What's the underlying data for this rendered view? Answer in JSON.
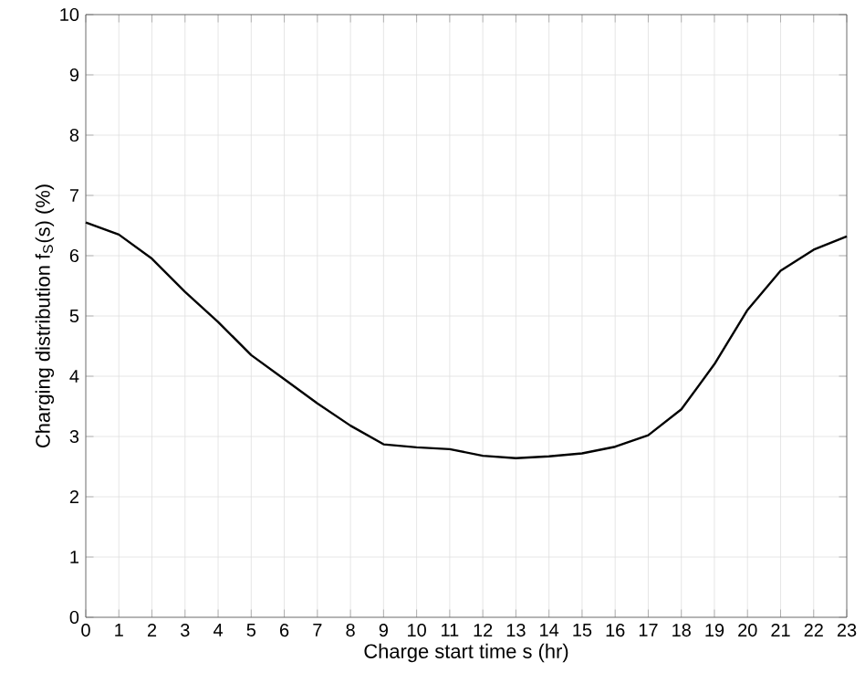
{
  "chart_data": {
    "type": "line",
    "xlabel": "Charge start time s (hr)",
    "ylabel": "Charging distribution f$_{S}$(s) (%)",
    "x": [
      0,
      1,
      2,
      3,
      4,
      5,
      6,
      7,
      8,
      9,
      10,
      11,
      12,
      13,
      14,
      15,
      16,
      17,
      18,
      19,
      20,
      21,
      22,
      23
    ],
    "series": [
      {
        "color": "#000000",
        "values": [
          6.55,
          6.35,
          5.95,
          5.4,
          4.9,
          4.35,
          3.95,
          3.55,
          3.18,
          2.87,
          2.82,
          2.79,
          2.68,
          2.64,
          2.67,
          2.72,
          2.83,
          3.02,
          3.45,
          4.2,
          5.1,
          5.75,
          6.1,
          6.32
        ]
      }
    ],
    "xlim": [
      0,
      23
    ],
    "ylim": [
      0,
      10
    ],
    "xticks": [
      0,
      1,
      2,
      3,
      4,
      5,
      6,
      7,
      8,
      9,
      10,
      11,
      12,
      13,
      14,
      15,
      16,
      17,
      18,
      19,
      20,
      21,
      22,
      23
    ],
    "yticks": [
      0,
      1,
      2,
      3,
      4,
      5,
      6,
      7,
      8,
      9,
      10
    ],
    "grid": true,
    "marker": "none",
    "line_style": "solid"
  }
}
